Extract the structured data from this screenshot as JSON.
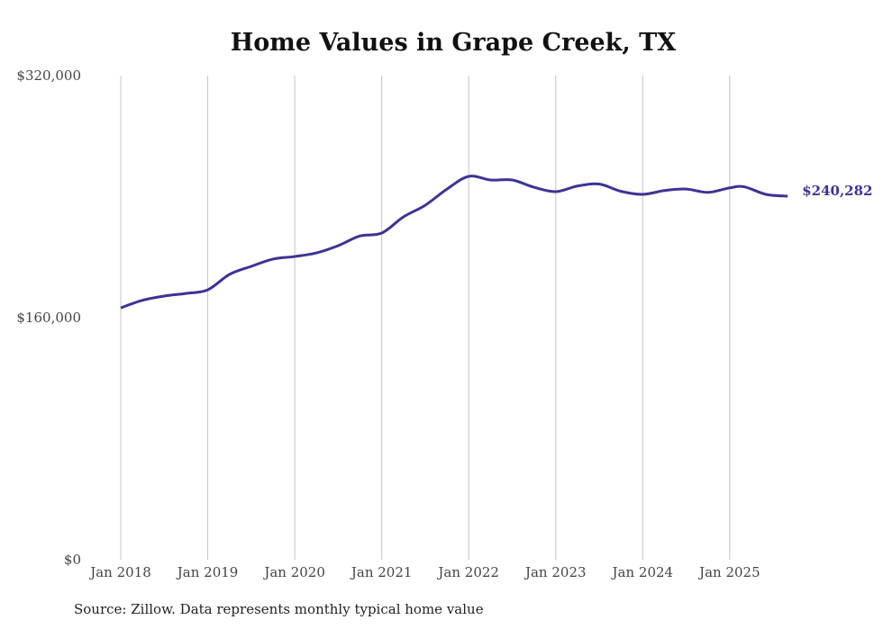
{
  "chart_data": {
    "type": "line",
    "title": "Home Values in Grape Creek, TX",
    "xlabel": "",
    "ylabel": "",
    "ylim": [
      0,
      320000
    ],
    "yticks": [
      0,
      160000,
      320000
    ],
    "ytick_labels": [
      "$0",
      "$160,000",
      "$320,000"
    ],
    "xticks": [
      2018,
      2019,
      2020,
      2021,
      2022,
      2023,
      2024,
      2025
    ],
    "xtick_labels": [
      "Jan 2018",
      "Jan 2019",
      "Jan 2020",
      "Jan 2021",
      "Jan 2022",
      "Jan 2023",
      "Jan 2024",
      "Jan 2025"
    ],
    "grid": "vertical",
    "line_color": "#3b3494",
    "series": [
      {
        "name": "Typical home value",
        "x": [
          "2018-01",
          "2018-04",
          "2018-07",
          "2018-10",
          "2019-01",
          "2019-04",
          "2019-07",
          "2019-10",
          "2020-01",
          "2020-04",
          "2020-07",
          "2020-10",
          "2021-01",
          "2021-04",
          "2021-07",
          "2021-10",
          "2022-01",
          "2022-04",
          "2022-07",
          "2022-10",
          "2023-01",
          "2023-04",
          "2023-07",
          "2023-10",
          "2024-01",
          "2024-04",
          "2024-07",
          "2024-10",
          "2025-01",
          "2025-03",
          "2025-06",
          "2025-09"
        ],
        "values": [
          166500,
          171500,
          174300,
          176000,
          178400,
          188600,
          193900,
          198700,
          200400,
          202800,
          207600,
          214000,
          215900,
          226600,
          234300,
          245000,
          253400,
          251000,
          251000,
          246200,
          243300,
          247000,
          248300,
          243500,
          241500,
          244000,
          245000,
          242800,
          245800,
          246500,
          241500,
          240282
        ]
      }
    ],
    "end_label": "$240,282"
  },
  "source": "Source: Zillow. Data represents monthly typical home value"
}
